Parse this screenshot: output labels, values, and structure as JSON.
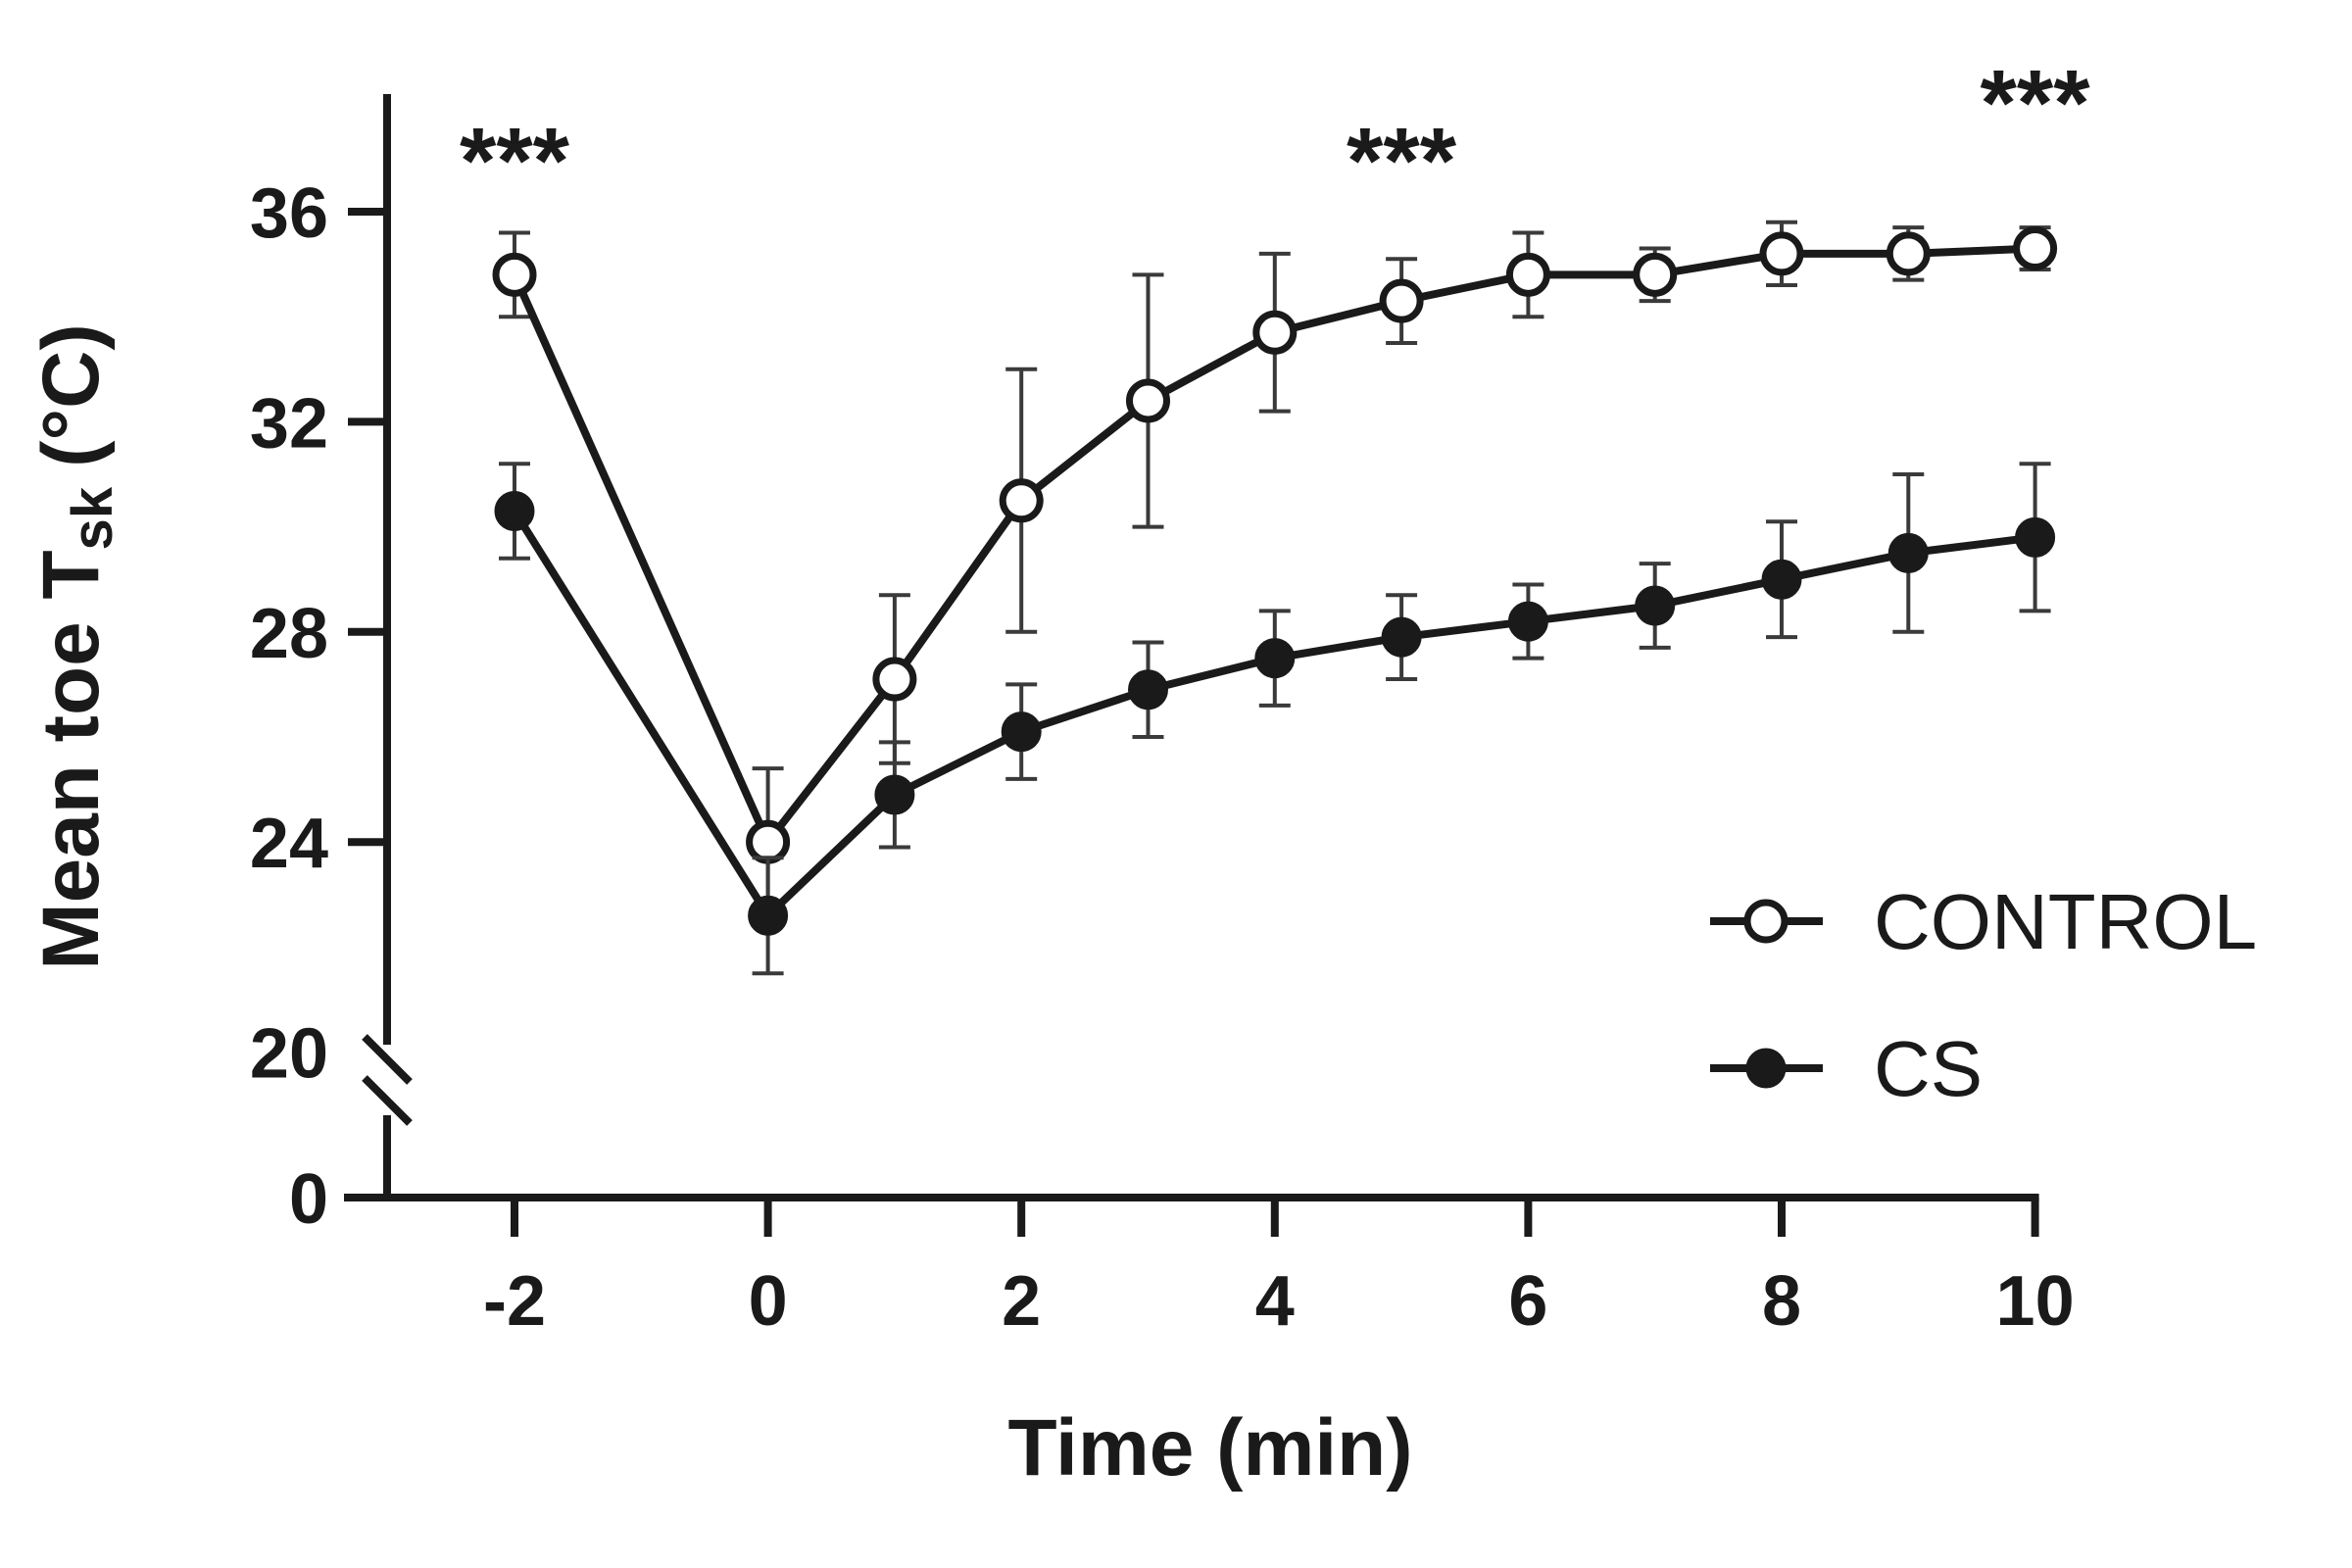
{
  "chart_data": {
    "type": "line",
    "xlabel": "Time (min)",
    "ylabel_main": "Mean toe T",
    "ylabel_sub": "sk",
    "ylabel_unit": "(°C)",
    "x_ticks": [
      "-2",
      "0",
      "2",
      "4",
      "6",
      "8",
      "10"
    ],
    "x_tick_values": [
      -2,
      0,
      2,
      4,
      6,
      8,
      10
    ],
    "y_ticks": [
      "36",
      "32",
      "28",
      "24",
      "20"
    ],
    "y_tick_values": [
      36,
      32,
      28,
      24,
      20
    ],
    "y_broken_tick": "0",
    "y_axis_break": true,
    "xlim": [
      -3,
      10
    ],
    "ylim": [
      20,
      38
    ],
    "x": [
      -2,
      0,
      1,
      2,
      3,
      4,
      5,
      6,
      7,
      8,
      9,
      10
    ],
    "series": [
      {
        "name": "CONTROL",
        "marker": "open-circle",
        "values": [
          34.8,
          24.0,
          27.1,
          30.5,
          32.4,
          33.7,
          34.3,
          34.8,
          34.8,
          35.2,
          35.2,
          35.3
        ],
        "errors": [
          0.8,
          1.4,
          1.6,
          2.5,
          2.4,
          1.5,
          0.8,
          0.8,
          0.5,
          0.6,
          0.5,
          0.4
        ]
      },
      {
        "name": "CS",
        "marker": "filled-circle",
        "values": [
          30.3,
          22.6,
          24.9,
          26.1,
          26.9,
          27.5,
          27.9,
          28.2,
          28.5,
          29.0,
          29.5,
          29.8
        ],
        "errors": [
          0.9,
          1.1,
          1.0,
          0.9,
          0.9,
          0.9,
          0.8,
          0.7,
          0.8,
          1.1,
          1.5,
          1.4
        ]
      }
    ],
    "annotations": [
      {
        "text": "***",
        "x": -2,
        "y": 37.1
      },
      {
        "text": "***",
        "x": 5,
        "y": 37.1
      },
      {
        "text": "***",
        "x": 10,
        "y": 38.2
      }
    ],
    "legend": {
      "position": "bottom-right",
      "entries": [
        {
          "label": "CONTROL",
          "marker": "open-circle"
        },
        {
          "label": "CS",
          "marker": "filled-circle"
        }
      ]
    },
    "grid": false
  }
}
